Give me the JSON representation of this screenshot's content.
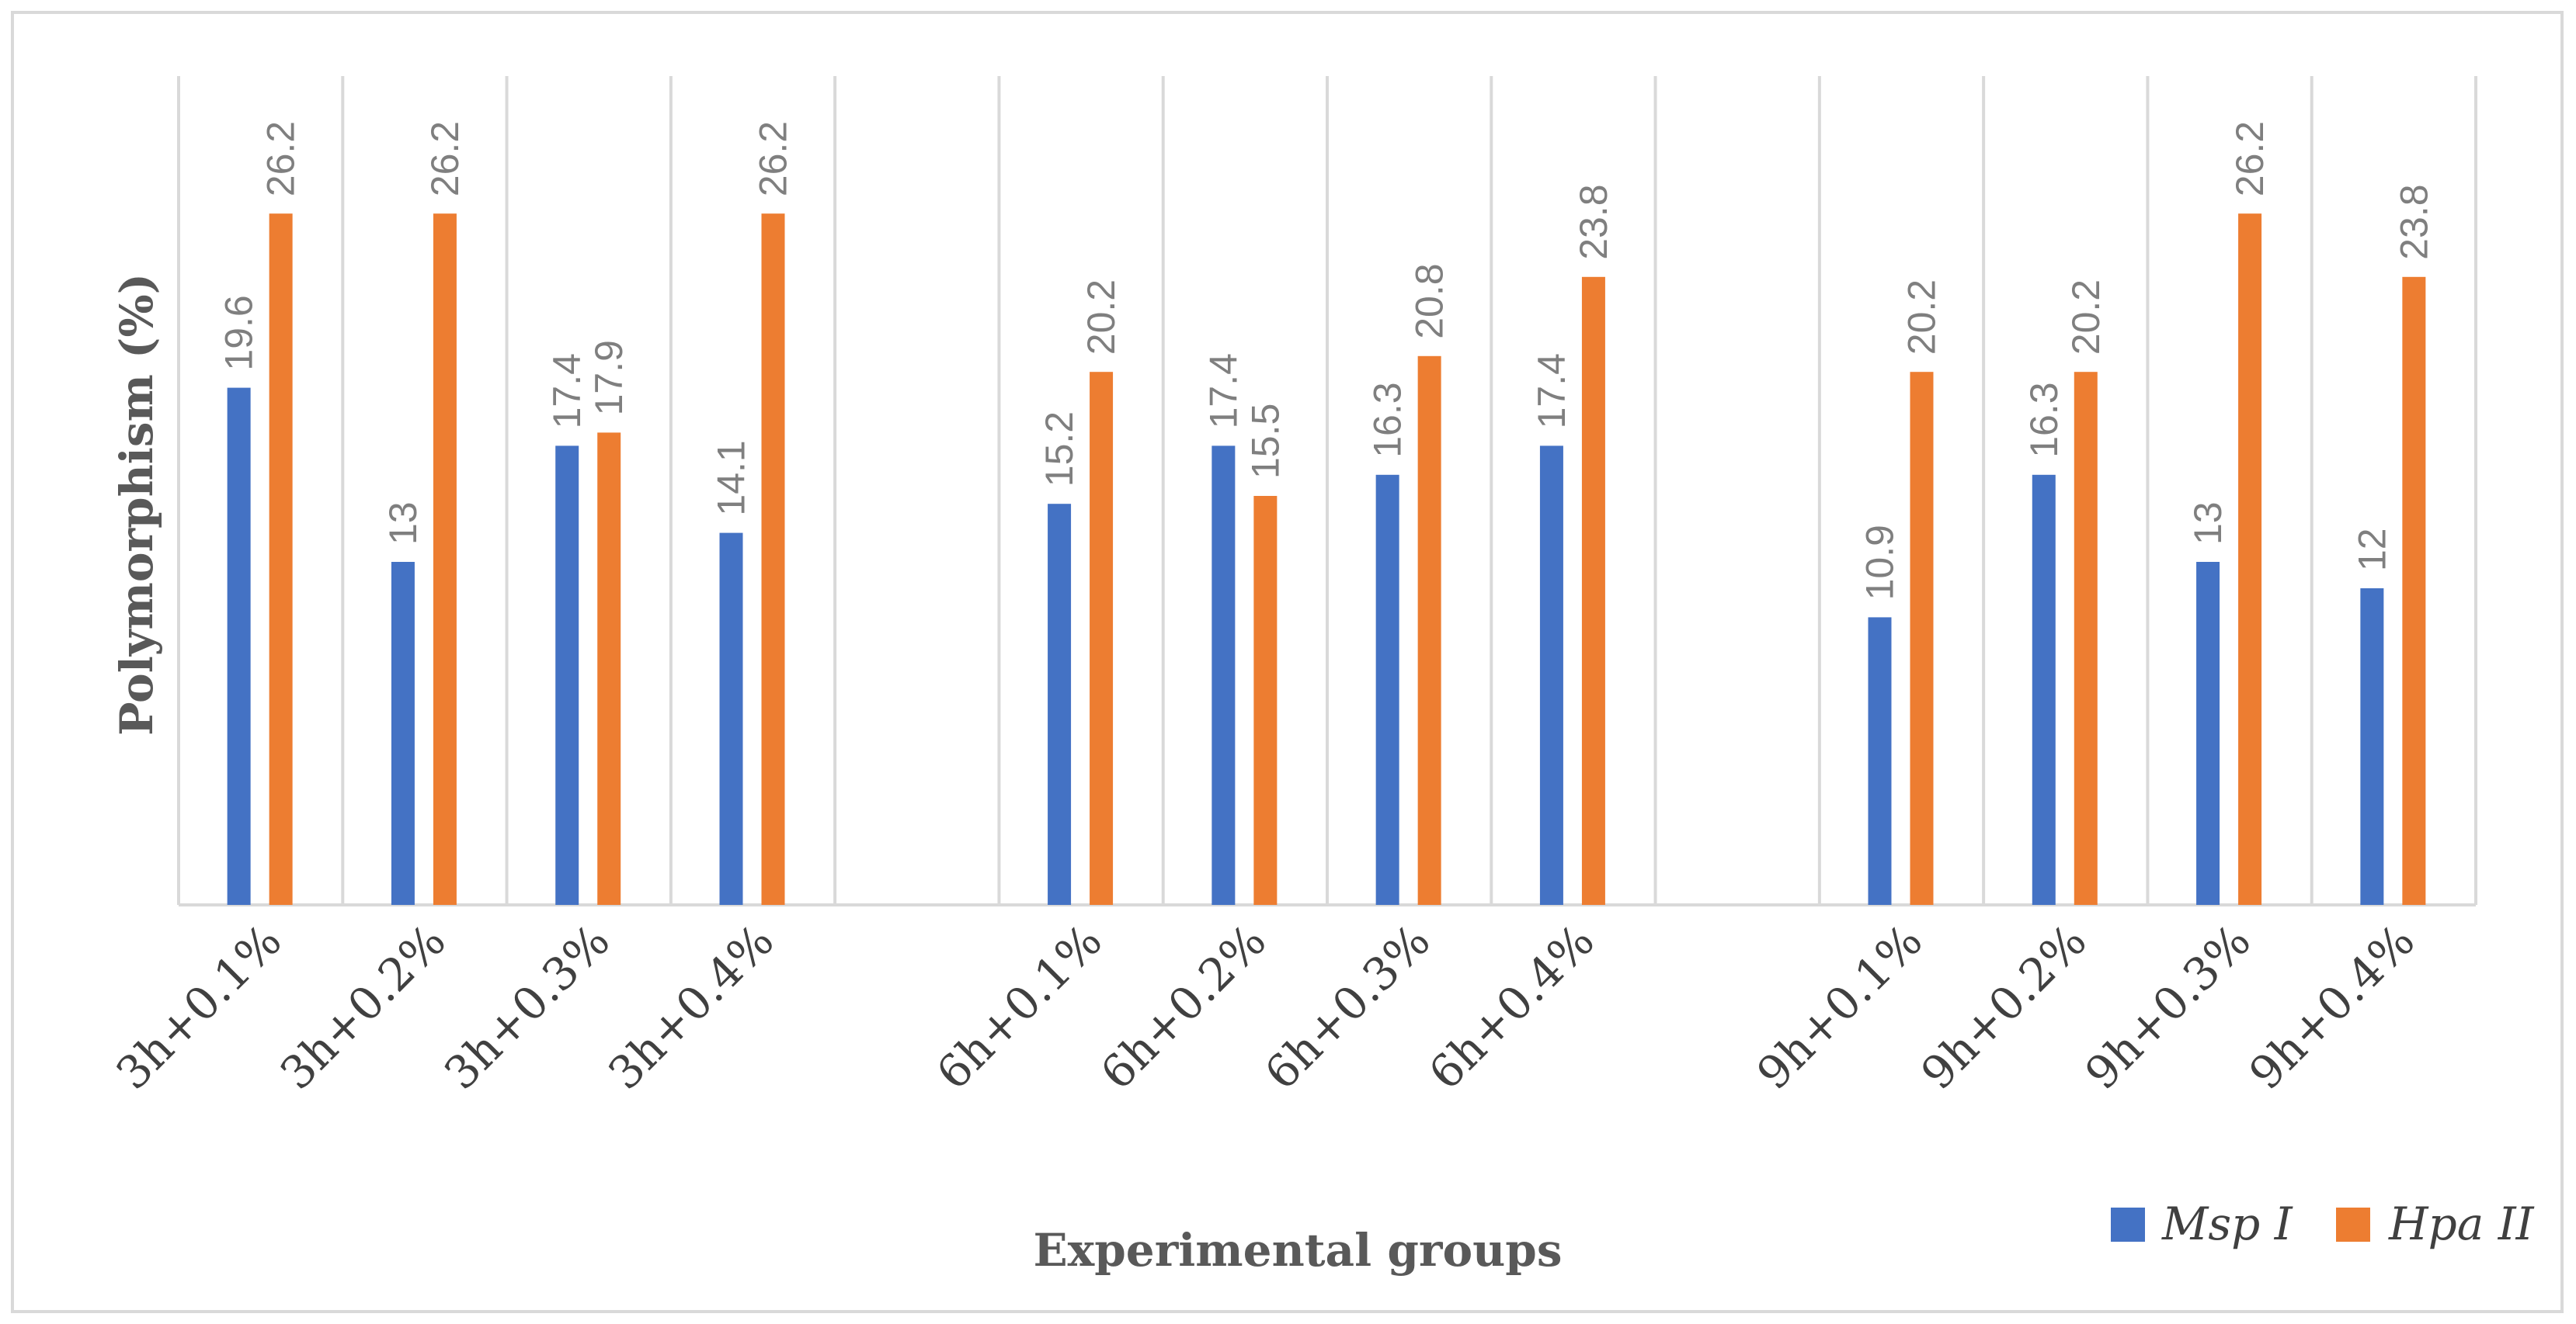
{
  "chart_data": {
    "type": "bar",
    "title": "",
    "xlabel": "Experimental groups",
    "ylabel": "Polymorphism (%)",
    "ylim": [
      0,
      28
    ],
    "grid": "vertical",
    "legend_position": "bottom-right",
    "categories": [
      "3h+0.1%",
      "3h+0.2%",
      "3h+0.3%",
      "3h+0.4%",
      "",
      "6h+0.1%",
      "6h+0.2%",
      "6h+0.3%",
      "6h+0.4%",
      "",
      "9h+0.1%",
      "9h+0.2%",
      "9h+0.3%",
      "9h+0.4%"
    ],
    "series": [
      {
        "name": "Msp I",
        "color": "#4472c4",
        "values": [
          19.6,
          13,
          17.4,
          14.1,
          null,
          15.2,
          17.4,
          16.3,
          17.4,
          null,
          10.9,
          16.3,
          13,
          12
        ],
        "labels": [
          "19.6",
          "13",
          "17.4",
          "14.1",
          "",
          "15.2",
          "17.4",
          "16.3",
          "17.4",
          "",
          "10.9",
          "16.3",
          "13",
          "12"
        ]
      },
      {
        "name": "Hpa II",
        "color": "#ed7d31",
        "values": [
          26.2,
          26.2,
          17.9,
          26.2,
          null,
          20.2,
          15.5,
          20.8,
          23.8,
          null,
          20.2,
          20.2,
          26.2,
          23.8
        ],
        "labels": [
          "26.2",
          "26.2",
          "17.9",
          "26.2",
          "",
          "20.2",
          "15.5",
          "20.8",
          "23.8",
          "",
          "20.2",
          "20.2",
          "26.2",
          "23.8"
        ]
      }
    ]
  }
}
